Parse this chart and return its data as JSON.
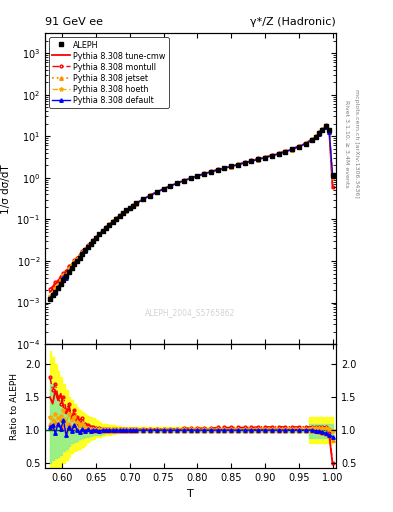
{
  "title_left": "91 GeV ee",
  "title_right": "γ*/Z (Hadronic)",
  "ylabel_main": "1/σ dσ/dT",
  "ylabel_ratio": "Ratio to ALEPH",
  "xlabel": "T",
  "watermark": "ALEPH_2004_S5765862",
  "right_label": "Rivet 3.1.10, ≥ 3.4M events",
  "arxiv_label": "mcplots.cern.ch [arXiv:1306.3436]",
  "xlim": [
    0.575,
    1.005
  ],
  "ylim_main": [
    0.0001,
    3000.0
  ],
  "ylim_ratio": [
    0.42,
    2.3
  ],
  "ratio_yticks": [
    0.5,
    1.0,
    1.5,
    2.0
  ],
  "background_color": "#ffffff",
  "legend_entries": [
    "ALEPH",
    "Pythia 8.308 default",
    "Pythia 8.308 hoeth",
    "Pythia 8.308 jetset",
    "Pythia 8.308 montull",
    "Pythia 8.308 tune-cmw"
  ],
  "data_T": [
    0.582,
    0.586,
    0.59,
    0.594,
    0.598,
    0.602,
    0.606,
    0.61,
    0.614,
    0.618,
    0.622,
    0.626,
    0.63,
    0.634,
    0.638,
    0.642,
    0.646,
    0.65,
    0.655,
    0.66,
    0.665,
    0.67,
    0.675,
    0.68,
    0.685,
    0.69,
    0.695,
    0.7,
    0.705,
    0.71,
    0.72,
    0.73,
    0.74,
    0.75,
    0.76,
    0.77,
    0.78,
    0.79,
    0.8,
    0.81,
    0.82,
    0.83,
    0.84,
    0.85,
    0.86,
    0.87,
    0.88,
    0.89,
    0.9,
    0.91,
    0.92,
    0.93,
    0.94,
    0.95,
    0.96,
    0.97,
    0.975,
    0.98,
    0.985,
    0.99,
    0.995,
    1.0
  ],
  "data_y": [
    0.0012,
    0.0015,
    0.0018,
    0.0022,
    0.0028,
    0.0035,
    0.0043,
    0.0055,
    0.0068,
    0.0083,
    0.01,
    0.012,
    0.015,
    0.018,
    0.022,
    0.026,
    0.03,
    0.036,
    0.044,
    0.053,
    0.063,
    0.075,
    0.089,
    0.105,
    0.123,
    0.143,
    0.165,
    0.189,
    0.215,
    0.243,
    0.305,
    0.375,
    0.453,
    0.54,
    0.635,
    0.74,
    0.853,
    0.975,
    1.105,
    1.24,
    1.39,
    1.54,
    1.7,
    1.88,
    2.08,
    2.29,
    2.53,
    2.78,
    3.08,
    3.4,
    3.78,
    4.25,
    4.82,
    5.6,
    6.65,
    8.3,
    9.6,
    11.8,
    14.5,
    18.0,
    14.0,
    1.2
  ],
  "band_yellow_lo": [
    0.3,
    0.35,
    0.38,
    0.4,
    0.42,
    0.5,
    0.55,
    0.6,
    0.65,
    0.68,
    0.7,
    0.72,
    0.75,
    0.78,
    0.82,
    0.85,
    0.87,
    0.89,
    0.9,
    0.91,
    0.92,
    0.93,
    0.94,
    0.95,
    0.96,
    0.97,
    0.97,
    0.97,
    0.97,
    0.97,
    0.97,
    0.97,
    0.97,
    0.97,
    0.97,
    0.97,
    0.97,
    0.97,
    0.97,
    0.97,
    0.97,
    0.97,
    0.97,
    0.97,
    0.97,
    0.97,
    0.97,
    0.97,
    0.97,
    0.97,
    0.97,
    0.97,
    0.97,
    0.97,
    0.97,
    0.8,
    0.8,
    0.8,
    0.8,
    0.8,
    0.8,
    0.8
  ],
  "band_yellow_hi": [
    2.2,
    2.1,
    2.0,
    1.9,
    1.8,
    1.7,
    1.6,
    1.5,
    1.45,
    1.4,
    1.35,
    1.3,
    1.28,
    1.25,
    1.22,
    1.2,
    1.18,
    1.15,
    1.12,
    1.1,
    1.09,
    1.08,
    1.07,
    1.06,
    1.06,
    1.05,
    1.05,
    1.05,
    1.05,
    1.04,
    1.04,
    1.04,
    1.04,
    1.04,
    1.04,
    1.04,
    1.04,
    1.04,
    1.04,
    1.04,
    1.04,
    1.04,
    1.04,
    1.04,
    1.04,
    1.04,
    1.04,
    1.04,
    1.04,
    1.04,
    1.04,
    1.04,
    1.04,
    1.04,
    1.04,
    1.2,
    1.2,
    1.2,
    1.2,
    1.2,
    1.2,
    1.2
  ],
  "band_green_lo": [
    0.5,
    0.55,
    0.58,
    0.6,
    0.62,
    0.68,
    0.72,
    0.76,
    0.8,
    0.82,
    0.84,
    0.86,
    0.88,
    0.89,
    0.9,
    0.91,
    0.92,
    0.93,
    0.93,
    0.94,
    0.95,
    0.95,
    0.96,
    0.96,
    0.97,
    0.97,
    0.97,
    0.97,
    0.97,
    0.97,
    0.97,
    0.97,
    0.97,
    0.97,
    0.97,
    0.97,
    0.97,
    0.97,
    0.97,
    0.97,
    0.97,
    0.97,
    0.97,
    0.97,
    0.97,
    0.97,
    0.97,
    0.97,
    0.97,
    0.97,
    0.97,
    0.97,
    0.97,
    0.97,
    0.97,
    0.88,
    0.88,
    0.88,
    0.88,
    0.88,
    0.88,
    0.88
  ],
  "band_green_hi": [
    1.8,
    1.7,
    1.6,
    1.5,
    1.45,
    1.4,
    1.35,
    1.3,
    1.25,
    1.22,
    1.18,
    1.15,
    1.12,
    1.1,
    1.08,
    1.07,
    1.06,
    1.05,
    1.04,
    1.03,
    1.03,
    1.02,
    1.02,
    1.02,
    1.02,
    1.02,
    1.02,
    1.02,
    1.02,
    1.02,
    1.02,
    1.02,
    1.02,
    1.02,
    1.02,
    1.02,
    1.02,
    1.02,
    1.02,
    1.02,
    1.02,
    1.02,
    1.02,
    1.02,
    1.02,
    1.02,
    1.02,
    1.02,
    1.02,
    1.02,
    1.02,
    1.02,
    1.02,
    1.02,
    1.02,
    1.1,
    1.1,
    1.1,
    1.1,
    1.1,
    1.1,
    1.1
  ],
  "ratio_default": [
    1.05,
    1.08,
    0.95,
    1.1,
    1.02,
    1.15,
    0.92,
    1.05,
    0.98,
    1.08,
    1.0,
    0.97,
    1.02,
    0.99,
    1.01,
    0.98,
    1.0,
    1.0,
    0.99,
    1.0,
    1.0,
    1.0,
    1.0,
    1.0,
    1.0,
    1.0,
    1.0,
    1.0,
    1.0,
    1.0,
    1.0,
    1.0,
    1.0,
    1.0,
    1.0,
    1.0,
    1.0,
    1.0,
    1.0,
    1.0,
    1.0,
    1.0,
    1.0,
    1.0,
    1.0,
    1.0,
    1.0,
    1.0,
    1.0,
    1.0,
    1.0,
    1.0,
    1.0,
    1.0,
    1.0,
    1.0,
    0.99,
    0.98,
    0.97,
    0.95,
    0.93,
    0.9
  ],
  "ratio_hoeth": [
    1.2,
    1.15,
    1.25,
    1.18,
    1.22,
    1.3,
    1.1,
    1.25,
    1.15,
    1.2,
    1.12,
    1.08,
    1.1,
    1.05,
    1.03,
    1.02,
    1.02,
    1.01,
    1.01,
    1.01,
    1.01,
    1.01,
    1.01,
    1.01,
    1.01,
    1.01,
    1.01,
    1.01,
    1.01,
    1.01,
    1.01,
    1.01,
    1.01,
    1.01,
    1.01,
    1.01,
    1.01,
    1.01,
    1.01,
    1.01,
    1.01,
    1.01,
    1.01,
    1.01,
    1.01,
    1.01,
    1.01,
    1.01,
    1.01,
    1.01,
    1.01,
    1.02,
    1.02,
    1.02,
    1.02,
    1.03,
    1.03,
    1.03,
    1.03,
    1.03,
    1.02,
    0.98
  ],
  "ratio_jetset": [
    1.1,
    1.05,
    1.12,
    1.08,
    1.15,
    1.05,
    0.98,
    1.1,
    1.05,
    1.08,
    1.02,
    0.99,
    1.01,
    0.98,
    1.0,
    0.99,
    0.99,
    0.99,
    0.99,
    0.99,
    0.99,
    0.99,
    0.99,
    0.99,
    0.99,
    0.99,
    0.99,
    0.99,
    0.99,
    0.99,
    0.99,
    0.99,
    0.99,
    0.99,
    0.99,
    0.99,
    0.99,
    0.99,
    0.99,
    0.99,
    0.99,
    0.99,
    0.99,
    0.99,
    0.99,
    0.99,
    0.99,
    0.99,
    0.99,
    0.99,
    0.99,
    0.99,
    0.99,
    0.99,
    0.99,
    0.99,
    0.98,
    0.97,
    0.96,
    0.94,
    0.92,
    0.85
  ],
  "ratio_montull": [
    1.8,
    1.6,
    1.7,
    1.5,
    1.4,
    1.5,
    1.3,
    1.4,
    1.2,
    1.3,
    1.2,
    1.15,
    1.18,
    1.1,
    1.08,
    1.05,
    1.04,
    1.03,
    1.03,
    1.02,
    1.02,
    1.02,
    1.02,
    1.02,
    1.02,
    1.02,
    1.02,
    1.02,
    1.02,
    1.02,
    1.02,
    1.02,
    1.02,
    1.02,
    1.02,
    1.02,
    1.03,
    1.03,
    1.03,
    1.03,
    1.03,
    1.04,
    1.04,
    1.04,
    1.04,
    1.04,
    1.04,
    1.05,
    1.05,
    1.05,
    1.05,
    1.05,
    1.05,
    1.05,
    1.05,
    1.05,
    1.05,
    1.05,
    1.05,
    1.05,
    0.95,
    0.5
  ],
  "ratio_cmw": [
    1.5,
    1.4,
    1.6,
    1.45,
    1.55,
    1.35,
    1.25,
    1.35,
    1.15,
    1.25,
    1.1,
    1.05,
    1.08,
    1.03,
    1.02,
    1.01,
    1.01,
    1.01,
    1.01,
    1.01,
    1.01,
    1.01,
    1.01,
    1.01,
    1.01,
    1.01,
    1.01,
    1.01,
    1.01,
    1.01,
    1.01,
    1.01,
    1.01,
    1.01,
    1.01,
    1.01,
    1.01,
    1.01,
    1.01,
    1.01,
    1.01,
    1.01,
    1.01,
    1.01,
    1.01,
    1.01,
    1.01,
    1.01,
    1.01,
    1.01,
    1.01,
    1.01,
    1.01,
    1.01,
    1.0,
    1.0,
    0.99,
    0.98,
    0.97,
    0.95,
    0.92,
    0.48
  ]
}
